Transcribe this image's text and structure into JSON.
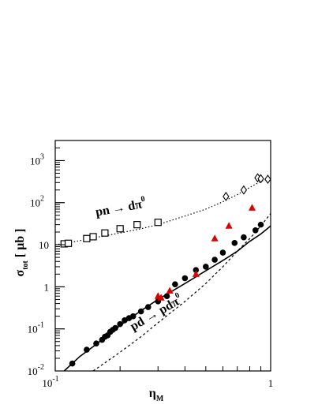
{
  "chart_data": {
    "type": "scatter",
    "title": "",
    "x_scale": "log",
    "y_scale": "log",
    "xlim": [
      0.1,
      1
    ],
    "ylim": [
      0.01,
      3000
    ],
    "xlabel": {
      "base": "η",
      "sub": "M"
    },
    "ylabel": {
      "base": "σ",
      "sub": "tot",
      "unit": "[ μb ]"
    },
    "x_ticks": [
      {
        "value": 0.1,
        "base": "10",
        "exp": "-1"
      },
      {
        "value": 1,
        "base": "1",
        "exp": ""
      }
    ],
    "y_ticks": [
      {
        "value": 0.01,
        "base": "10",
        "exp": "-2"
      },
      {
        "value": 0.1,
        "base": "10",
        "exp": "-1"
      },
      {
        "value": 1,
        "base": "1",
        "exp": ""
      },
      {
        "value": 10,
        "base": "10",
        "exp": ""
      },
      {
        "value": 100,
        "base": "10",
        "exp": "2"
      },
      {
        "value": 1000,
        "base": "10",
        "exp": "3"
      }
    ],
    "annotations": [
      {
        "id": "pn",
        "text": "pn → dπ",
        "sup": "0",
        "x": 0.155,
        "y": 48
      },
      {
        "id": "pd",
        "text": "pd → pdπ",
        "sup": "0",
        "x": 0.23,
        "y": 0.09
      }
    ],
    "series": [
      {
        "id": "pn-squares",
        "marker": "open-square",
        "color": "#000000",
        "points": [
          [
            0.11,
            10.5
          ],
          [
            0.115,
            10.8
          ],
          [
            0.14,
            14
          ],
          [
            0.15,
            15.5
          ],
          [
            0.17,
            19
          ],
          [
            0.2,
            24
          ],
          [
            0.24,
            30
          ],
          [
            0.3,
            34
          ]
        ]
      },
      {
        "id": "pn-diamonds",
        "marker": "open-diamond",
        "color": "#000000",
        "points": [
          [
            0.62,
            140
          ],
          [
            0.75,
            200
          ],
          [
            0.87,
            390
          ],
          [
            0.9,
            370
          ],
          [
            0.97,
            360
          ]
        ]
      },
      {
        "id": "pd-circles",
        "marker": "filled-circle",
        "color": "#000000",
        "points": [
          [
            0.12,
            0.015
          ],
          [
            0.14,
            0.032
          ],
          [
            0.155,
            0.045
          ],
          [
            0.165,
            0.055
          ],
          [
            0.17,
            0.065
          ],
          [
            0.175,
            0.07
          ],
          [
            0.18,
            0.085
          ],
          [
            0.185,
            0.095
          ],
          [
            0.19,
            0.105
          ],
          [
            0.2,
            0.13
          ],
          [
            0.21,
            0.16
          ],
          [
            0.22,
            0.18
          ],
          [
            0.23,
            0.2
          ],
          [
            0.25,
            0.26
          ],
          [
            0.27,
            0.33
          ],
          [
            0.3,
            0.45
          ],
          [
            0.33,
            0.6
          ],
          [
            0.36,
            1.15
          ],
          [
            0.4,
            1.6
          ],
          [
            0.45,
            2.5
          ],
          [
            0.5,
            3.0
          ],
          [
            0.55,
            4.4
          ],
          [
            0.6,
            6.5
          ],
          [
            0.68,
            11
          ],
          [
            0.75,
            15
          ],
          [
            0.85,
            22
          ],
          [
            0.9,
            30
          ]
        ]
      },
      {
        "id": "pd-triangles",
        "marker": "filled-triangle",
        "color": "#dd0000",
        "points": [
          [
            0.3,
            0.6
          ],
          [
            0.31,
            0.55
          ],
          [
            0.34,
            0.8
          ],
          [
            0.45,
            2.0
          ],
          [
            0.55,
            14
          ],
          [
            0.64,
            28
          ],
          [
            0.82,
            75
          ]
        ]
      }
    ],
    "lines": [
      {
        "id": "pn-fit",
        "style": "dotted",
        "color": "#000000",
        "points": [
          [
            0.1,
            10
          ],
          [
            0.12,
            11.5
          ],
          [
            0.15,
            14.5
          ],
          [
            0.2,
            19
          ],
          [
            0.25,
            24
          ],
          [
            0.3,
            30
          ],
          [
            0.4,
            48
          ],
          [
            0.5,
            70
          ],
          [
            0.6,
            105
          ],
          [
            0.7,
            155
          ],
          [
            0.8,
            230
          ],
          [
            0.9,
            320
          ],
          [
            1.0,
            380
          ]
        ]
      },
      {
        "id": "pd-solid",
        "style": "solid",
        "color": "#000000",
        "points": [
          [
            0.11,
            0.01
          ],
          [
            0.13,
            0.022
          ],
          [
            0.15,
            0.038
          ],
          [
            0.2,
            0.12
          ],
          [
            0.25,
            0.27
          ],
          [
            0.3,
            0.5
          ],
          [
            0.4,
            1.2
          ],
          [
            0.5,
            2.4
          ],
          [
            0.6,
            4.2
          ],
          [
            0.7,
            7.0
          ],
          [
            0.8,
            12
          ],
          [
            0.9,
            18
          ],
          [
            1.0,
            28
          ]
        ]
      },
      {
        "id": "pd-dashed",
        "style": "dashed",
        "color": "#000000",
        "points": [
          [
            0.15,
            0.01
          ],
          [
            0.2,
            0.028
          ],
          [
            0.25,
            0.065
          ],
          [
            0.3,
            0.14
          ],
          [
            0.4,
            0.45
          ],
          [
            0.5,
            1.2
          ],
          [
            0.6,
            3.0
          ],
          [
            0.7,
            7.0
          ],
          [
            0.8,
            14
          ],
          [
            0.9,
            28
          ],
          [
            1.0,
            55
          ]
        ]
      }
    ]
  }
}
